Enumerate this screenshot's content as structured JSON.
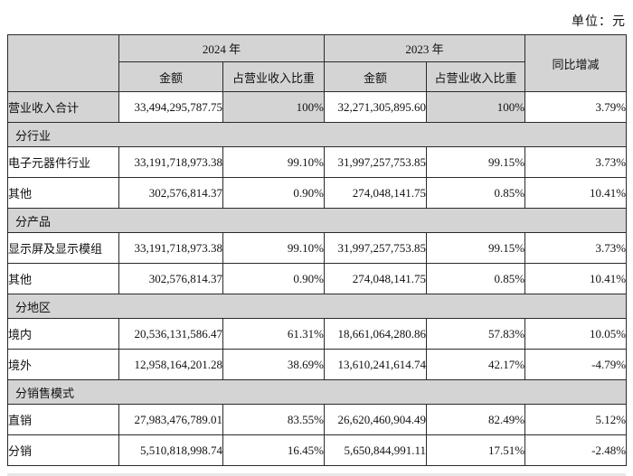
{
  "unit_label": "单位：元",
  "table": {
    "header": {
      "year_2024": "2024 年",
      "year_2023": "2023 年",
      "yoy": "同比增减",
      "amount": "金额",
      "ratio": "占营业收入比重"
    },
    "rows": [
      {
        "type": "data",
        "shaded": true,
        "label": "营业收入合计",
        "a2024": "33,494,295,787.75",
        "r2024": "100%",
        "a2023": "32,271,305,895.60",
        "r2023": "100%",
        "yoy": "3.79%"
      },
      {
        "type": "section",
        "label": "分行业"
      },
      {
        "type": "data",
        "shaded": false,
        "label": "电子元器件行业",
        "a2024": "33,191,718,973.38",
        "r2024": "99.10%",
        "a2023": "31,997,257,753.85",
        "r2023": "99.15%",
        "yoy": "3.73%"
      },
      {
        "type": "data",
        "shaded": false,
        "label": "其他",
        "a2024": "302,576,814.37",
        "r2024": "0.90%",
        "a2023": "274,048,141.75",
        "r2023": "0.85%",
        "yoy": "10.41%"
      },
      {
        "type": "section",
        "label": "分产品"
      },
      {
        "type": "data",
        "shaded": false,
        "label": "显示屏及显示模组",
        "a2024": "33,191,718,973.38",
        "r2024": "99.10%",
        "a2023": "31,997,257,753.85",
        "r2023": "99.15%",
        "yoy": "3.73%"
      },
      {
        "type": "data",
        "shaded": false,
        "label": "其他",
        "a2024": "302,576,814.37",
        "r2024": "0.90%",
        "a2023": "274,048,141.75",
        "r2023": "0.85%",
        "yoy": "10.41%"
      },
      {
        "type": "section",
        "label": "分地区"
      },
      {
        "type": "data",
        "shaded": false,
        "label": "境内",
        "a2024": "20,536,131,586.47",
        "r2024": "61.31%",
        "a2023": "18,661,064,280.86",
        "r2023": "57.83%",
        "yoy": "10.05%"
      },
      {
        "type": "data",
        "shaded": false,
        "label": "境外",
        "a2024": "12,958,164,201.28",
        "r2024": "38.69%",
        "a2023": "13,610,241,614.74",
        "r2023": "42.17%",
        "yoy": "-4.79%"
      },
      {
        "type": "section",
        "label": "分销售模式"
      },
      {
        "type": "data",
        "shaded": false,
        "label": "直销",
        "a2024": "27,983,476,789.01",
        "r2024": "83.55%",
        "a2023": "26,620,460,904.49",
        "r2023": "82.49%",
        "yoy": "5.12%"
      },
      {
        "type": "data",
        "shaded": false,
        "label": "分销",
        "a2024": "5,510,818,998.74",
        "r2024": "16.45%",
        "a2023": "5,650,844,991.11",
        "r2023": "17.51%",
        "yoy": "-2.48%"
      }
    ]
  }
}
